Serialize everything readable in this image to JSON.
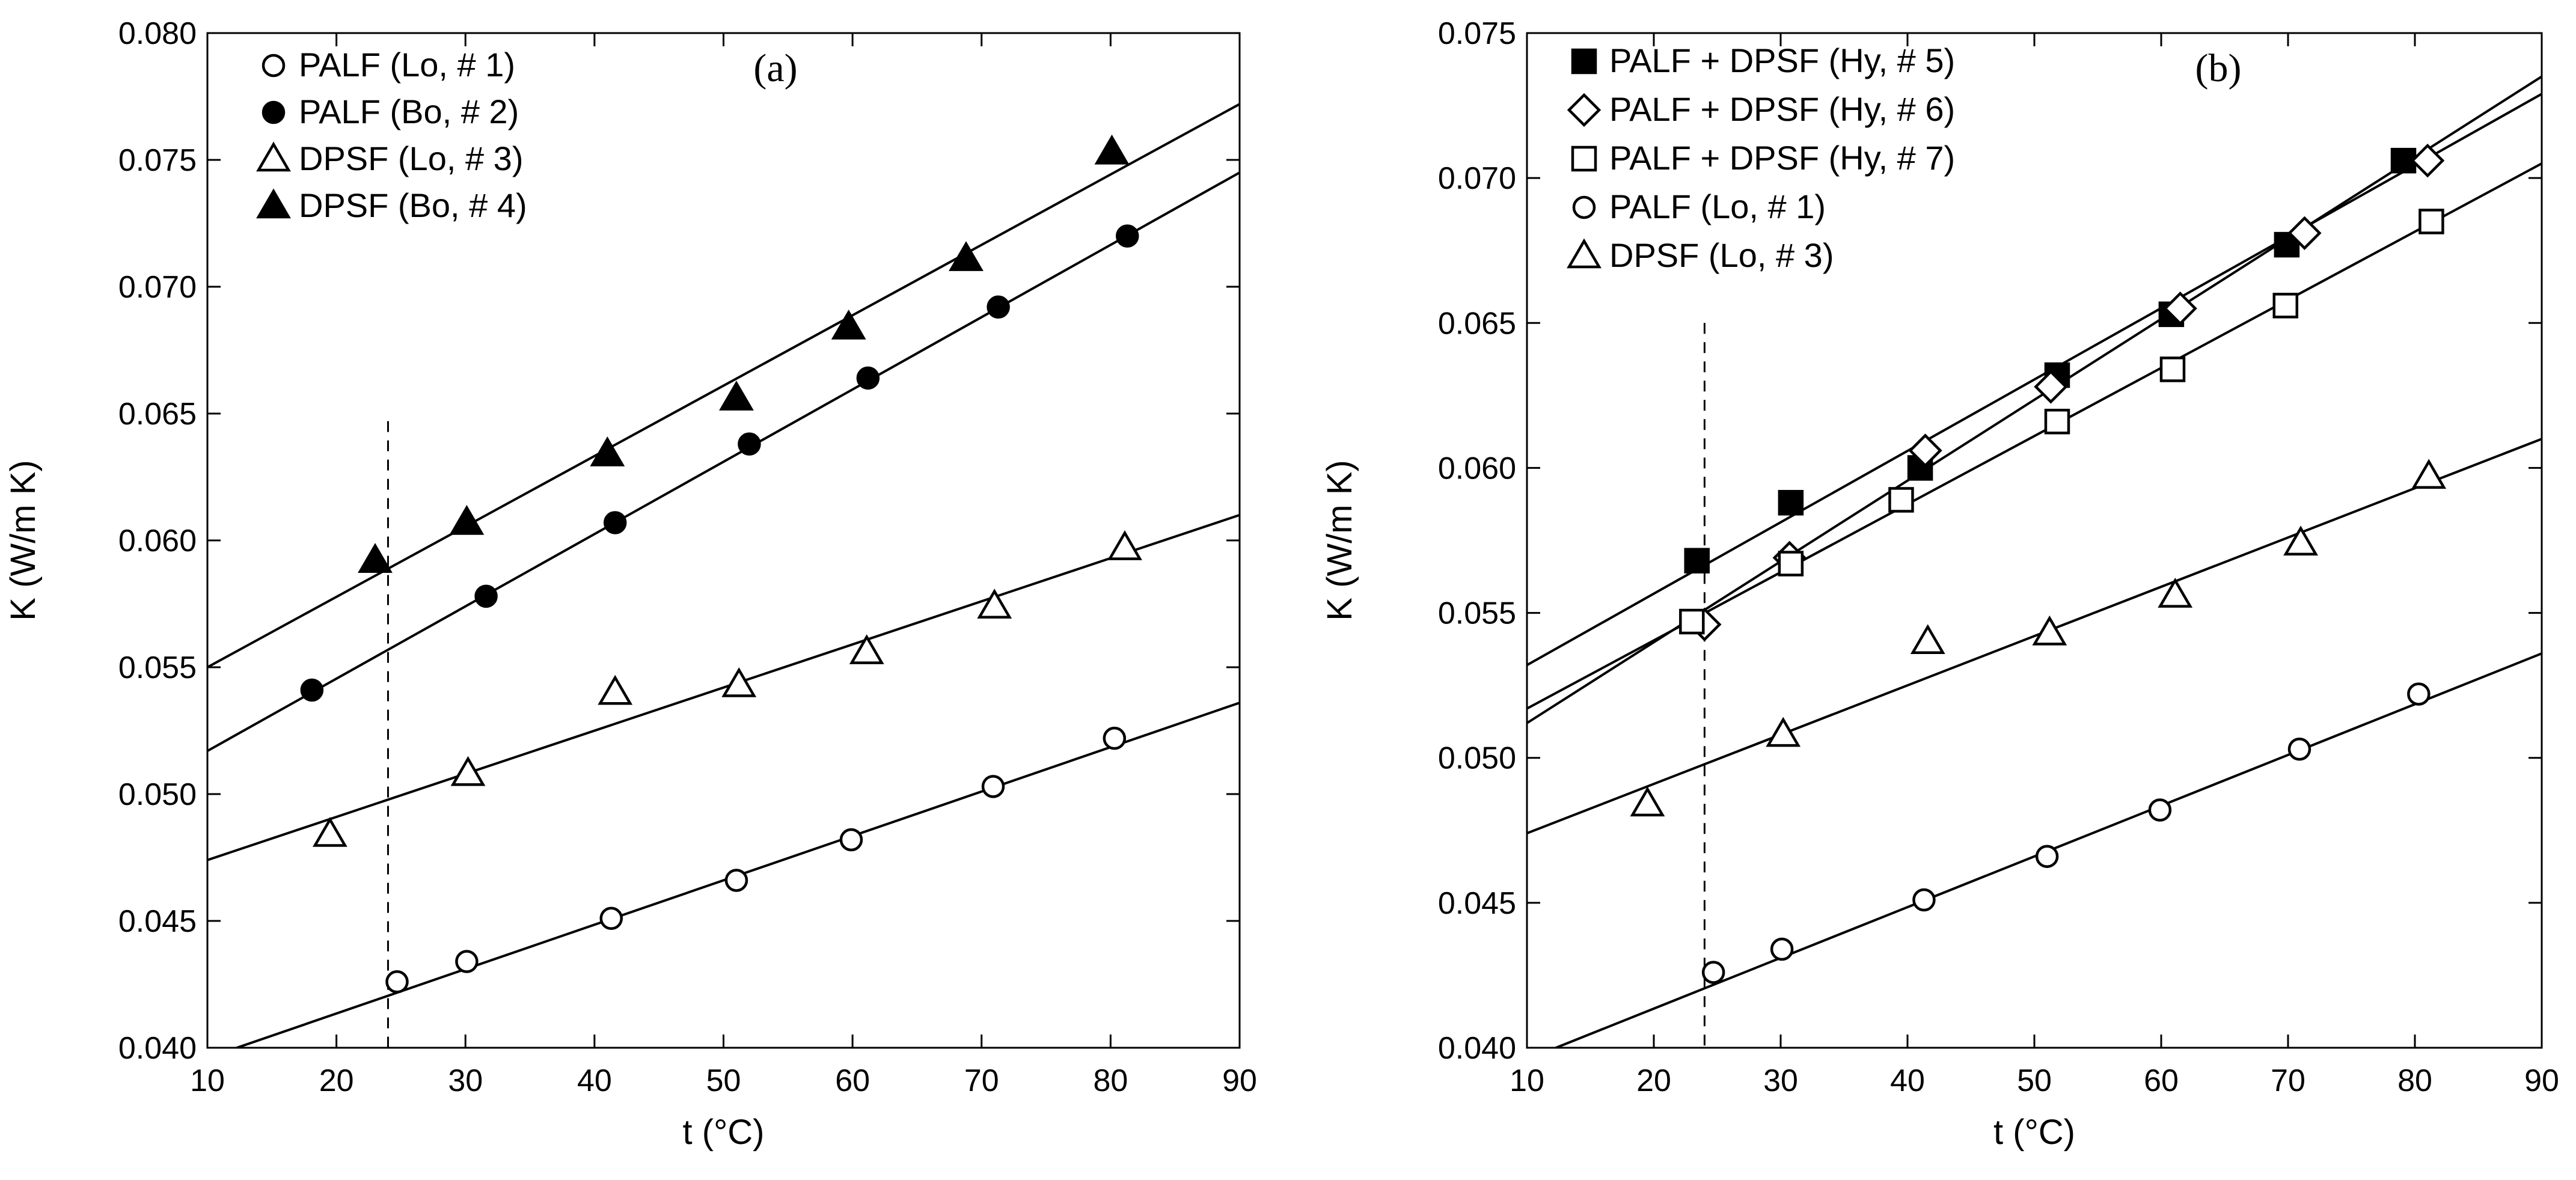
{
  "chart_data": [
    {
      "type": "scatter",
      "panel_label": "(a)",
      "xlabel": "t (°C)",
      "ylabel": "K (W/m K)",
      "xlim": [
        10,
        90
      ],
      "ylim": [
        0.04,
        0.08
      ],
      "x_ticks": [
        "10",
        "20",
        "30",
        "40",
        "50",
        "60",
        "70",
        "80",
        "90"
      ],
      "y_ticks": [
        "0.040",
        "0.045",
        "0.050",
        "0.055",
        "0.060",
        "0.065",
        "0.070",
        "0.075",
        "0.080"
      ],
      "reference_line_x": 24,
      "legend_position": "top-left",
      "series": [
        {
          "name": "PALF (Lo, # 1)",
          "marker": "circle-open",
          "x": [
            24.7,
            30.1,
            41.3,
            51.0,
            59.9,
            70.9,
            80.3
          ],
          "y": [
            0.0426,
            0.0434,
            0.0451,
            0.0466,
            0.0482,
            0.0503,
            0.0522
          ],
          "fit": [
            [
              10,
              0.0396
            ],
            [
              90,
              0.0536
            ]
          ]
        },
        {
          "name": "PALF (Bo, # 2)",
          "marker": "circle-filled",
          "x": [
            18.1,
            31.6,
            41.6,
            52.0,
            61.2,
            71.3,
            81.3
          ],
          "y": [
            0.0541,
            0.0578,
            0.0607,
            0.0638,
            0.0664,
            0.0692,
            0.072
          ],
          "fit": [
            [
              10,
              0.0517
            ],
            [
              90,
              0.0745
            ]
          ]
        },
        {
          "name": "DPSF (Lo, # 3)",
          "marker": "triangle-open",
          "x": [
            19.5,
            30.2,
            41.6,
            51.2,
            61.1,
            71.0,
            81.1
          ],
          "y": [
            0.0484,
            0.0508,
            0.054,
            0.0543,
            0.0556,
            0.0574,
            0.0597
          ],
          "fit": [
            [
              10,
              0.0474
            ],
            [
              90,
              0.061
            ]
          ]
        },
        {
          "name": "DPSF (Bo, # 4)",
          "marker": "triangle-filled",
          "x": [
            23.0,
            30.1,
            41.0,
            51.0,
            59.7,
            68.8,
            80.1
          ],
          "y": [
            0.0592,
            0.0607,
            0.0634,
            0.0656,
            0.0684,
            0.0711,
            0.0753
          ],
          "fit": [
            [
              10,
              0.055
            ],
            [
              90,
              0.0772
            ]
          ]
        }
      ]
    },
    {
      "type": "scatter",
      "panel_label": "(b)",
      "xlabel": "t (°C)",
      "ylabel": "K (W/m K)",
      "xlim": [
        10,
        90
      ],
      "ylim": [
        0.04,
        0.075
      ],
      "x_ticks": [
        "10",
        "20",
        "30",
        "40",
        "50",
        "60",
        "70",
        "80",
        "90"
      ],
      "y_ticks": [
        "0.040",
        "0.045",
        "0.050",
        "0.055",
        "0.060",
        "0.065",
        "0.070",
        "0.075"
      ],
      "reference_line_x": 24,
      "legend_position": "top-left",
      "series": [
        {
          "name": "PALF + DPSF (Hy, # 5)",
          "marker": "square-filled",
          "x": [
            23.4,
            30.8,
            41.0,
            51.8,
            60.8,
            69.9,
            79.1
          ],
          "y": [
            0.0568,
            0.0588,
            0.06,
            0.0632,
            0.0653,
            0.0677,
            0.0706
          ],
          "fit": [
            [
              10,
              0.0532
            ],
            [
              90,
              0.0729
            ]
          ]
        },
        {
          "name": "PALF + DPSF (Hy, # 6)",
          "marker": "diamond-open",
          "x": [
            24.0,
            30.7,
            41.4,
            51.3,
            61.5,
            71.3,
            81.0
          ],
          "y": [
            0.0546,
            0.0569,
            0.0606,
            0.0628,
            0.0655,
            0.0681,
            0.0706
          ],
          "fit": [
            [
              10,
              0.0512
            ],
            [
              90,
              0.0735
            ]
          ]
        },
        {
          "name": "PALF + DPSF (Hy, # 7)",
          "marker": "square-open",
          "x": [
            23.0,
            30.8,
            39.5,
            51.8,
            60.9,
            69.8,
            81.3
          ],
          "y": [
            0.0547,
            0.0567,
            0.0589,
            0.0616,
            0.0634,
            0.0656,
            0.0685
          ],
          "fit": [
            [
              10,
              0.0517
            ],
            [
              90,
              0.0705
            ]
          ]
        },
        {
          "name": "PALF (Lo, # 1)",
          "marker": "circle-open",
          "x": [
            24.7,
            30.1,
            41.3,
            51.0,
            59.9,
            70.9,
            80.3
          ],
          "y": [
            0.0426,
            0.0434,
            0.0451,
            0.0466,
            0.0482,
            0.0503,
            0.0522
          ],
          "fit": [
            [
              10,
              0.0396
            ],
            [
              90,
              0.0536
            ]
          ]
        },
        {
          "name": "DPSF (Lo, # 3)",
          "marker": "triangle-open",
          "x": [
            19.5,
            30.2,
            41.6,
            51.2,
            61.1,
            71.0,
            81.1
          ],
          "y": [
            0.0484,
            0.0508,
            0.054,
            0.0543,
            0.0556,
            0.0574,
            0.0597
          ],
          "fit": [
            [
              10,
              0.0474
            ],
            [
              90,
              0.061
            ]
          ]
        }
      ]
    }
  ]
}
